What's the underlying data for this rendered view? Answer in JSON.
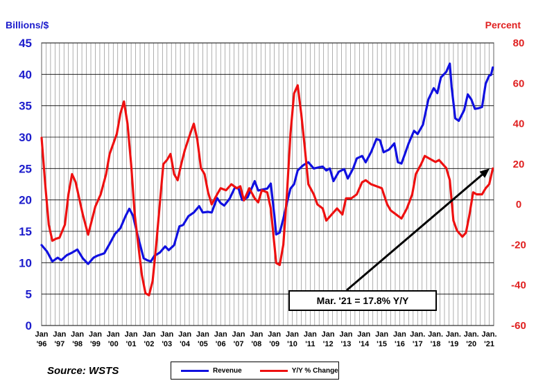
{
  "chart_data": {
    "type": "line",
    "left_axis_title": "Billions/$",
    "right_axis_title": "Percent",
    "left_ylim": [
      0,
      45
    ],
    "left_ticks": [
      0,
      5,
      10,
      15,
      20,
      25,
      30,
      35,
      40,
      45
    ],
    "right_ylim": [
      -60,
      80
    ],
    "right_ticks": [
      -60,
      -40,
      -20,
      0,
      20,
      40,
      60,
      80
    ],
    "x_range": [
      1996,
      2021.25
    ],
    "x_ticks": [
      [
        "Jan",
        "'96"
      ],
      [
        "Jan",
        "'97"
      ],
      [
        "Jan",
        "'98"
      ],
      [
        "Jan",
        "'99"
      ],
      [
        "Jan",
        "'00"
      ],
      [
        "Jan",
        "'01"
      ],
      [
        "Jan",
        "'02"
      ],
      [
        "Jan",
        "'03"
      ],
      [
        "Jan",
        "'04"
      ],
      [
        "Jan",
        "'05"
      ],
      [
        "Jan",
        "'06"
      ],
      [
        "Jan",
        "'07"
      ],
      [
        "Jan",
        "'08"
      ],
      [
        "Jan",
        "'09"
      ],
      [
        "Jan",
        "'10"
      ],
      [
        "Jan",
        "'11"
      ],
      [
        "Jan",
        "'12"
      ],
      [
        "Jan",
        "'13"
      ],
      [
        "Jan",
        "'14"
      ],
      [
        "Jan",
        "'15"
      ],
      [
        "Jan",
        "'16"
      ],
      [
        "Jan.",
        "'17"
      ],
      [
        "Jan.",
        "'18"
      ],
      [
        "Jan.",
        "'19"
      ],
      [
        "Jan.",
        "'20"
      ],
      [
        "Jan.",
        "'21"
      ]
    ],
    "grid": true,
    "legend_position": "bottom-center",
    "series": [
      {
        "name": "Revenue",
        "axis": "left",
        "color": "#1010e0",
        "points": [
          [
            1996.0,
            12.8
          ],
          [
            1996.3,
            11.8
          ],
          [
            1996.6,
            10.2
          ],
          [
            1996.9,
            10.8
          ],
          [
            1997.1,
            10.4
          ],
          [
            1997.4,
            11.2
          ],
          [
            1997.7,
            11.6
          ],
          [
            1998.0,
            12.1
          ],
          [
            1998.3,
            10.7
          ],
          [
            1998.6,
            9.8
          ],
          [
            1998.9,
            10.8
          ],
          [
            1999.1,
            11.1
          ],
          [
            1999.5,
            11.5
          ],
          [
            1999.8,
            13.0
          ],
          [
            2000.1,
            14.6
          ],
          [
            2000.4,
            15.5
          ],
          [
            2000.7,
            17.5
          ],
          [
            2000.9,
            18.6
          ],
          [
            2001.1,
            17.5
          ],
          [
            2001.4,
            14.0
          ],
          [
            2001.7,
            10.7
          ],
          [
            2001.9,
            10.4
          ],
          [
            2002.1,
            10.2
          ],
          [
            2002.3,
            11.1
          ],
          [
            2002.6,
            11.6
          ],
          [
            2002.9,
            12.6
          ],
          [
            2003.1,
            12.0
          ],
          [
            2003.4,
            12.8
          ],
          [
            2003.7,
            15.8
          ],
          [
            2003.9,
            16.0
          ],
          [
            2004.2,
            17.4
          ],
          [
            2004.5,
            18.0
          ],
          [
            2004.8,
            19.0
          ],
          [
            2005.0,
            18.0
          ],
          [
            2005.3,
            18.1
          ],
          [
            2005.5,
            18.0
          ],
          [
            2005.8,
            20.3
          ],
          [
            2006.0,
            19.5
          ],
          [
            2006.2,
            19.1
          ],
          [
            2006.5,
            20.2
          ],
          [
            2006.8,
            22.0
          ],
          [
            2007.0,
            21.8
          ],
          [
            2007.2,
            20.0
          ],
          [
            2007.5,
            20.4
          ],
          [
            2007.8,
            22.3
          ],
          [
            2007.9,
            23.0
          ],
          [
            2008.1,
            21.5
          ],
          [
            2008.4,
            21.7
          ],
          [
            2008.6,
            21.8
          ],
          [
            2008.8,
            22.6
          ],
          [
            2009.0,
            17.5
          ],
          [
            2009.1,
            14.5
          ],
          [
            2009.3,
            14.8
          ],
          [
            2009.5,
            17.0
          ],
          [
            2009.7,
            19.5
          ],
          [
            2009.9,
            21.8
          ],
          [
            2010.1,
            22.5
          ],
          [
            2010.3,
            24.7
          ],
          [
            2010.6,
            25.5
          ],
          [
            2010.9,
            26.0
          ],
          [
            2011.2,
            25.0
          ],
          [
            2011.5,
            25.2
          ],
          [
            2011.7,
            25.3
          ],
          [
            2011.9,
            24.7
          ],
          [
            2012.1,
            25.0
          ],
          [
            2012.3,
            23.0
          ],
          [
            2012.6,
            24.5
          ],
          [
            2012.9,
            24.9
          ],
          [
            2013.1,
            23.4
          ],
          [
            2013.4,
            25.0
          ],
          [
            2013.6,
            26.6
          ],
          [
            2013.9,
            27.0
          ],
          [
            2014.1,
            26.0
          ],
          [
            2014.4,
            27.6
          ],
          [
            2014.7,
            29.7
          ],
          [
            2014.9,
            29.5
          ],
          [
            2015.1,
            27.6
          ],
          [
            2015.4,
            28.0
          ],
          [
            2015.7,
            29.0
          ],
          [
            2015.9,
            26.0
          ],
          [
            2016.1,
            25.8
          ],
          [
            2016.3,
            27.4
          ],
          [
            2016.5,
            29.0
          ],
          [
            2016.8,
            31.0
          ],
          [
            2017.0,
            30.5
          ],
          [
            2017.3,
            32.0
          ],
          [
            2017.6,
            36.0
          ],
          [
            2017.9,
            37.8
          ],
          [
            2018.1,
            37.0
          ],
          [
            2018.3,
            39.5
          ],
          [
            2018.6,
            40.4
          ],
          [
            2018.8,
            41.7
          ],
          [
            2018.9,
            38.0
          ],
          [
            2019.1,
            33.0
          ],
          [
            2019.3,
            32.6
          ],
          [
            2019.6,
            34.3
          ],
          [
            2019.8,
            36.8
          ],
          [
            2020.0,
            36.0
          ],
          [
            2020.2,
            34.5
          ],
          [
            2020.4,
            34.6
          ],
          [
            2020.6,
            34.8
          ],
          [
            2020.8,
            38.5
          ],
          [
            2021.0,
            39.8
          ],
          [
            2021.1,
            39.9
          ],
          [
            2021.2,
            41.1
          ]
        ]
      },
      {
        "name": "Y/Y % Change",
        "axis": "right",
        "color": "#ee1010",
        "points": [
          [
            1996.0,
            33.0
          ],
          [
            1996.2,
            10.0
          ],
          [
            1996.4,
            -10.0
          ],
          [
            1996.6,
            -18.0
          ],
          [
            1996.8,
            -17.0
          ],
          [
            1997.0,
            -16.5
          ],
          [
            1997.3,
            -10.0
          ],
          [
            1997.5,
            5.0
          ],
          [
            1997.7,
            15.0
          ],
          [
            1997.9,
            11.0
          ],
          [
            1998.1,
            3.0
          ],
          [
            1998.3,
            -5.0
          ],
          [
            1998.6,
            -15.0
          ],
          [
            1998.8,
            -8.0
          ],
          [
            1999.0,
            -1.0
          ],
          [
            1999.3,
            5.0
          ],
          [
            1999.6,
            15.0
          ],
          [
            1999.8,
            25.0
          ],
          [
            2000.0,
            30.0
          ],
          [
            2000.2,
            35.0
          ],
          [
            2000.4,
            45.0
          ],
          [
            2000.6,
            51.0
          ],
          [
            2000.8,
            40.0
          ],
          [
            2001.0,
            20.0
          ],
          [
            2001.2,
            -5.0
          ],
          [
            2001.4,
            -20.0
          ],
          [
            2001.6,
            -35.0
          ],
          [
            2001.8,
            -44.0
          ],
          [
            2002.0,
            -45.0
          ],
          [
            2002.2,
            -38.0
          ],
          [
            2002.4,
            -20.0
          ],
          [
            2002.6,
            0.0
          ],
          [
            2002.8,
            20.0
          ],
          [
            2003.0,
            22.0
          ],
          [
            2003.2,
            25.0
          ],
          [
            2003.4,
            15.0
          ],
          [
            2003.6,
            12.0
          ],
          [
            2003.8,
            20.0
          ],
          [
            2004.0,
            27.0
          ],
          [
            2004.3,
            35.0
          ],
          [
            2004.5,
            40.0
          ],
          [
            2004.7,
            32.0
          ],
          [
            2004.9,
            18.0
          ],
          [
            2005.1,
            15.0
          ],
          [
            2005.3,
            6.0
          ],
          [
            2005.5,
            0.0
          ],
          [
            2005.8,
            5.0
          ],
          [
            2006.0,
            8.0
          ],
          [
            2006.3,
            7.0
          ],
          [
            2006.6,
            10.0
          ],
          [
            2006.9,
            8.0
          ],
          [
            2007.1,
            9.0
          ],
          [
            2007.3,
            2.0
          ],
          [
            2007.6,
            8.0
          ],
          [
            2007.9,
            3.0
          ],
          [
            2008.1,
            1.0
          ],
          [
            2008.3,
            7.0
          ],
          [
            2008.6,
            6.0
          ],
          [
            2008.8,
            -2.0
          ],
          [
            2009.0,
            -20.0
          ],
          [
            2009.1,
            -29.0
          ],
          [
            2009.3,
            -30.0
          ],
          [
            2009.5,
            -20.0
          ],
          [
            2009.7,
            5.0
          ],
          [
            2009.9,
            35.0
          ],
          [
            2010.1,
            55.0
          ],
          [
            2010.3,
            59.0
          ],
          [
            2010.5,
            45.0
          ],
          [
            2010.7,
            28.0
          ],
          [
            2010.9,
            10.0
          ],
          [
            2011.2,
            5.0
          ],
          [
            2011.4,
            0.0
          ],
          [
            2011.7,
            -2.0
          ],
          [
            2011.9,
            -8.0
          ],
          [
            2012.2,
            -5.0
          ],
          [
            2012.5,
            -2.0
          ],
          [
            2012.8,
            -5.0
          ],
          [
            2013.0,
            3.0
          ],
          [
            2013.3,
            3.0
          ],
          [
            2013.6,
            5.0
          ],
          [
            2013.9,
            11.0
          ],
          [
            2014.1,
            12.0
          ],
          [
            2014.4,
            10.0
          ],
          [
            2014.7,
            9.0
          ],
          [
            2015.0,
            8.0
          ],
          [
            2015.3,
            0.0
          ],
          [
            2015.5,
            -3.0
          ],
          [
            2015.8,
            -5.0
          ],
          [
            2016.1,
            -7.0
          ],
          [
            2016.4,
            -2.0
          ],
          [
            2016.7,
            5.0
          ],
          [
            2016.9,
            15.0
          ],
          [
            2017.2,
            20.0
          ],
          [
            2017.4,
            24.0
          ],
          [
            2017.6,
            23.0
          ],
          [
            2017.8,
            22.0
          ],
          [
            2018.0,
            21.0
          ],
          [
            2018.2,
            22.0
          ],
          [
            2018.4,
            20.0
          ],
          [
            2018.6,
            18.0
          ],
          [
            2018.8,
            12.0
          ],
          [
            2019.0,
            -8.0
          ],
          [
            2019.2,
            -13.0
          ],
          [
            2019.5,
            -16.0
          ],
          [
            2019.7,
            -14.0
          ],
          [
            2019.9,
            -5.0
          ],
          [
            2020.1,
            6.0
          ],
          [
            2020.3,
            5.0
          ],
          [
            2020.6,
            5.0
          ],
          [
            2020.8,
            8.0
          ],
          [
            2021.0,
            10.0
          ],
          [
            2021.2,
            17.8
          ]
        ]
      }
    ],
    "annotation": {
      "text": "Mar. '21 = 17.8% Y/Y",
      "target": [
        2021.25,
        17.8
      ],
      "target_axis": "right"
    },
    "source": "Source: WSTS"
  }
}
